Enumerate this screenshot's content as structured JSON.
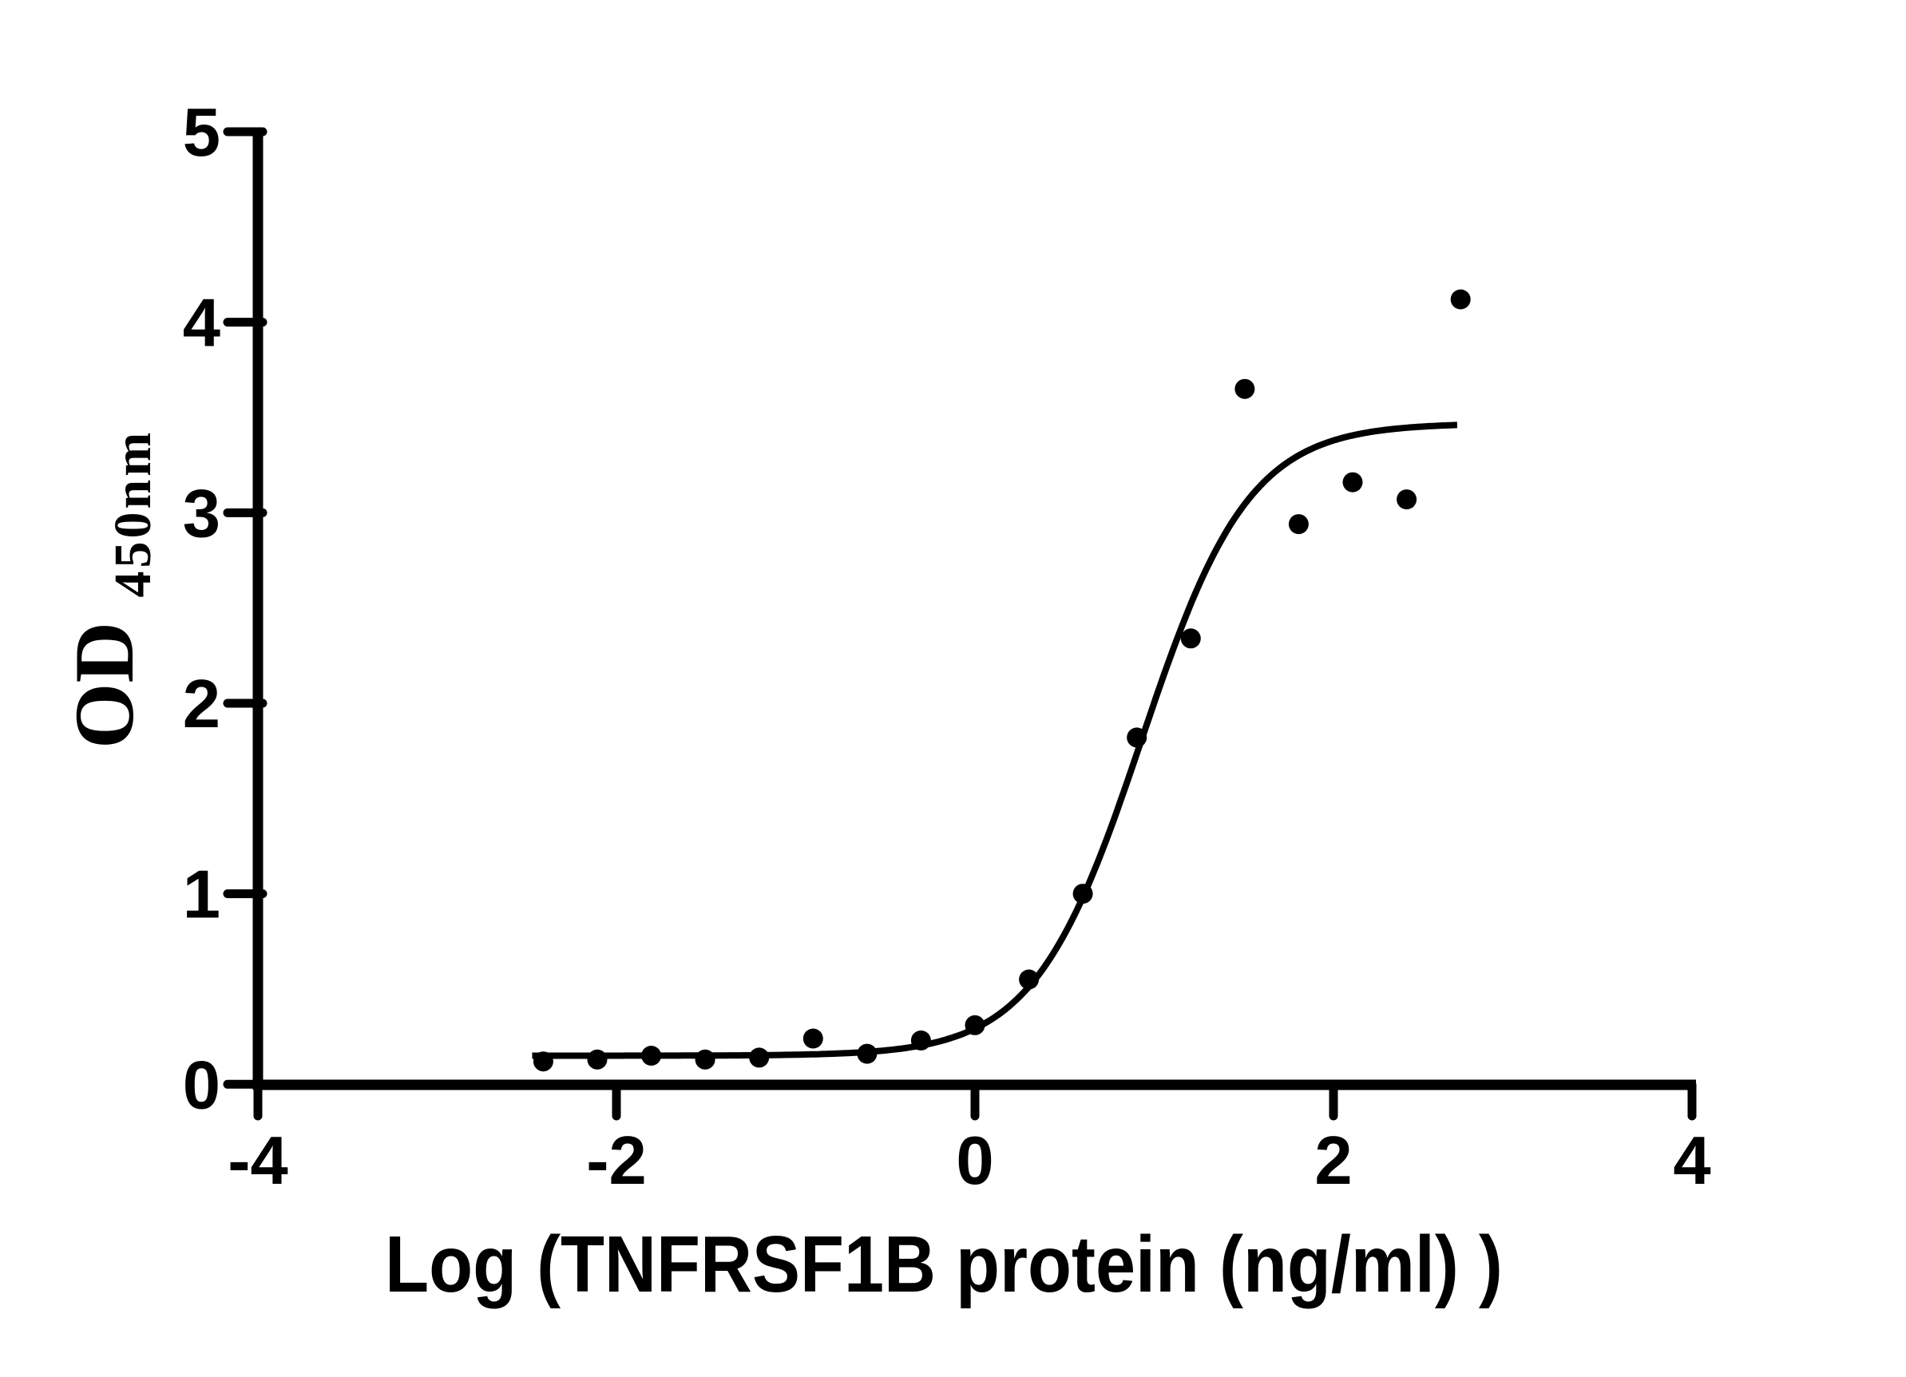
{
  "chart_data": {
    "type": "scatter",
    "title": "",
    "xlabel": "Log (TNFRSF1B protein (ng/ml) )",
    "ylabel": "OD",
    "ylabel_sub": "450nm",
    "x_ticks": [
      -4,
      -2,
      0,
      2,
      4
    ],
    "x_tick_labels": [
      "-4",
      "-2",
      "0",
      "2",
      "4"
    ],
    "y_ticks": [
      0,
      1,
      2,
      3,
      4,
      5
    ],
    "y_tick_labels": [
      "0",
      "1",
      "2",
      "3",
      "4",
      "5"
    ],
    "xlim": [
      -4,
      4
    ],
    "ylim": [
      0,
      5
    ],
    "grid": false,
    "legend": null,
    "x": [
      -2.408,
      -2.107,
      -1.806,
      -1.505,
      -1.204,
      -0.903,
      -0.602,
      -0.301,
      0.0,
      0.301,
      0.602,
      0.903,
      1.204,
      1.505,
      1.806,
      2.107,
      2.408,
      2.709
    ],
    "y": [
      0.12,
      0.13,
      0.15,
      0.13,
      0.14,
      0.24,
      0.16,
      0.23,
      0.31,
      0.55,
      1.0,
      1.82,
      2.34,
      3.65,
      2.94,
      3.16,
      3.07,
      4.12
    ],
    "fit_curve": {
      "model": "4PL sigmoidal dose-response",
      "bottom": 0.15,
      "top": 3.47,
      "log_ec50": 0.93,
      "hill_slope": 1.45,
      "x_start": -2.47,
      "x_end": 2.7
    },
    "marker_color": "#000000",
    "curve_color": "#000000",
    "axis_color": "#000000",
    "background_color": "#ffffff"
  }
}
